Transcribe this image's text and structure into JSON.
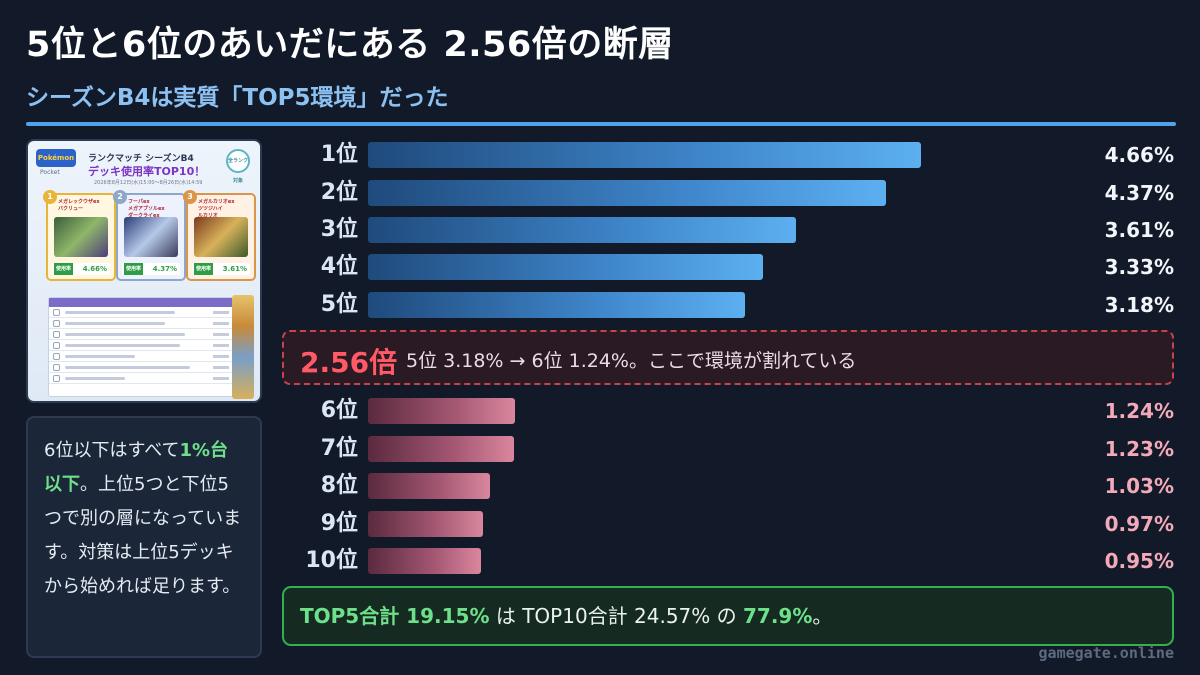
{
  "title": "5位と6位のあいだにある 2.56倍の断層",
  "subtitle": "シーズンB4は実質「TOP5環境」だった",
  "thumbnail": {
    "logo": "Pokémon",
    "logo_sub": "Pocket",
    "heading1": "ランクマッチ シーズンB4",
    "heading2": "デッキ使用率TOP10！",
    "dates": "2026年8月12日(水)15:00〜8月26日(水)14:59",
    "badge": "全ランク対象",
    "cards": [
      {
        "num": "1",
        "name": "メガレックウザex\nバクリュー",
        "usage_label": "使用率",
        "pct": "4.66%"
      },
      {
        "num": "2",
        "name": "フーパex\nメガアブソルex\nダークライex",
        "usage_label": "使用率",
        "pct": "4.37%"
      },
      {
        "num": "3",
        "name": "メガルカリオex\nツツジハイ\nルカリオ",
        "usage_label": "使用率",
        "pct": "3.61%"
      }
    ]
  },
  "note": {
    "part1": "6位以下はすべて",
    "highlight": "1%台以下",
    "part2": "。上位5つと下位5つで別の層になっています。対策は上位5デッキから始めれば足ります。"
  },
  "gap_box": {
    "multiplier": "2.56倍",
    "description": "5位 3.18% → 6位 1.24%。ここで環境が割れている"
  },
  "summary": {
    "lead": "TOP5合計 19.15%",
    "mid": " は TOP10合計 24.57% の ",
    "ratio": "77.9%",
    "tail": "。"
  },
  "footer": "gamegate.online",
  "colors": {
    "top_bar": "#5cb0f0",
    "low_bar": "#d9879e",
    "accent_red": "#ff5a66",
    "accent_green": "#6ee08a"
  },
  "chart_data": {
    "type": "bar",
    "orientation": "horizontal",
    "categories": [
      "1位",
      "2位",
      "3位",
      "4位",
      "5位",
      "6位",
      "7位",
      "8位",
      "9位",
      "10位"
    ],
    "values": [
      4.66,
      4.37,
      3.61,
      3.33,
      3.18,
      1.24,
      1.23,
      1.03,
      0.97,
      0.95
    ],
    "value_labels": [
      "4.66%",
      "4.37%",
      "3.61%",
      "3.33%",
      "3.18%",
      "1.24%",
      "1.23%",
      "1.03%",
      "0.97%",
      "0.95%"
    ],
    "groups": [
      "top",
      "top",
      "top",
      "top",
      "top",
      "low",
      "low",
      "low",
      "low",
      "low"
    ],
    "unit": "%",
    "xlim": [
      0,
      5.06
    ]
  }
}
